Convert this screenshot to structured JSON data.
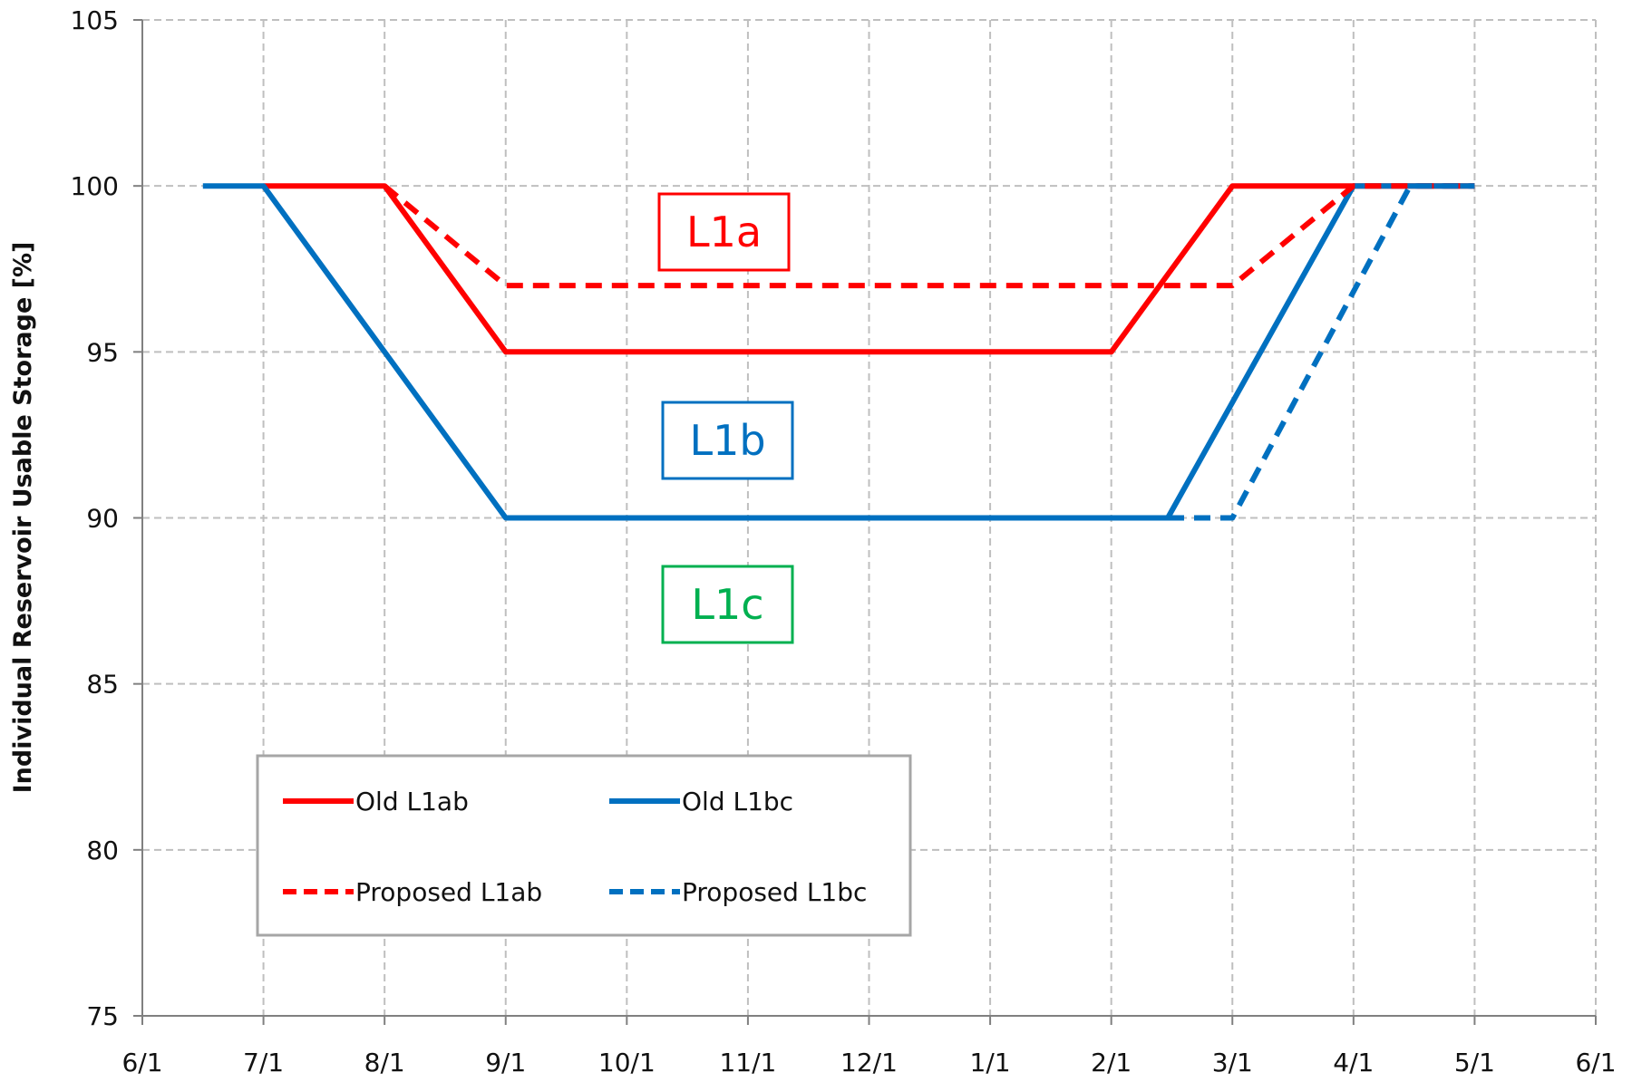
{
  "chart_data": {
    "type": "line",
    "ylabel": "Individual Reservoir Usable Storage [%]",
    "xlabel": "",
    "title": "",
    "ylim": [
      75,
      105
    ],
    "yticks": [
      75,
      80,
      85,
      90,
      95,
      100,
      105
    ],
    "xticks": [
      "6/1",
      "7/1",
      "8/1",
      "9/1",
      "10/1",
      "11/1",
      "12/1",
      "1/1",
      "2/1",
      "3/1",
      "4/1",
      "5/1",
      "6/1"
    ],
    "grid": true,
    "legend_position": "lower-left",
    "series": [
      {
        "name": "Old L1ab",
        "color": "#ff0000",
        "dash": "solid",
        "points": [
          {
            "x": "7/1",
            "y": 100
          },
          {
            "x": "8/1",
            "y": 100
          },
          {
            "x": "9/1",
            "y": 95
          },
          {
            "x": "2/1",
            "y": 95
          },
          {
            "x": "3/1",
            "y": 100
          },
          {
            "x": "5/1",
            "y": 100
          }
        ]
      },
      {
        "name": "Old L1bc",
        "color": "#0070c0",
        "dash": "solid",
        "points": [
          {
            "x": "6/16",
            "y": 100
          },
          {
            "x": "7/1",
            "y": 100
          },
          {
            "x": "9/1",
            "y": 90
          },
          {
            "x": "2/15",
            "y": 90
          },
          {
            "x": "4/1",
            "y": 100
          },
          {
            "x": "5/1",
            "y": 100
          }
        ]
      },
      {
        "name": "Proposed L1ab",
        "color": "#ff0000",
        "dash": "dashed",
        "points": [
          {
            "x": "8/1",
            "y": 100
          },
          {
            "x": "9/1",
            "y": 97
          },
          {
            "x": "3/1",
            "y": 97
          },
          {
            "x": "4/1",
            "y": 100
          },
          {
            "x": "5/1",
            "y": 100
          }
        ]
      },
      {
        "name": "Proposed L1bc",
        "color": "#0070c0",
        "dash": "dashed",
        "points": [
          {
            "x": "2/15",
            "y": 90
          },
          {
            "x": "3/1",
            "y": 90
          },
          {
            "x": "4/15",
            "y": 100
          },
          {
            "x": "5/1",
            "y": 100
          }
        ]
      }
    ],
    "annotations": [
      {
        "text": "L1a",
        "color": "#ff0000"
      },
      {
        "text": "L1b",
        "color": "#0070c0"
      },
      {
        "text": "L1c",
        "color": "#00b050"
      }
    ]
  }
}
